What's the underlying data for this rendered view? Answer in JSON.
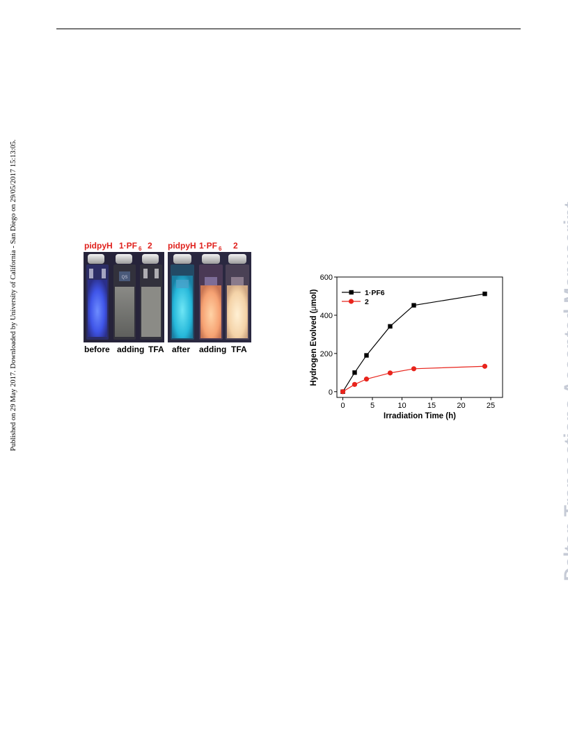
{
  "watermark": {
    "published": "Published on 29 May 2017. Downloaded by University of California - San Diego on 29/05/2017 15:13:05.",
    "journal": "Dalton Transactions Accepted Manuscript"
  },
  "photo": {
    "labels_top": [
      "pidpyH",
      "1·PF",
      "6",
      "2",
      "pidpyH",
      "1·PF",
      "6",
      "2"
    ],
    "caption_left": [
      "before",
      "adding",
      "TFA"
    ],
    "caption_right": [
      "after",
      "adding",
      "TFA"
    ],
    "vial_text": "QS",
    "colors": {
      "label_red": "#e0201c",
      "blue_glow": "#4a6bff",
      "cyan_glow": "#3fd4ee",
      "orange_glow": "#ffb27a",
      "peach_glow": "#ffdcae"
    }
  },
  "chart_data": {
    "type": "line",
    "xlabel": "Irradiation Time (h)",
    "ylabel_pre": "Hydrogen Evolved (",
    "ylabel_mu": "μ",
    "ylabel_post": "mol)",
    "xlim": [
      -1,
      27
    ],
    "ylim": [
      -30,
      600
    ],
    "xticks": [
      0,
      5,
      10,
      15,
      20,
      25
    ],
    "yticks": [
      0,
      200,
      400,
      600
    ],
    "legend_position": "top-left",
    "series": [
      {
        "name": "1·PF6",
        "marker": "square",
        "color": "#000000",
        "x": [
          0,
          2,
          4,
          8,
          12,
          24
        ],
        "y": [
          0,
          100,
          190,
          342,
          452,
          512
        ]
      },
      {
        "name": "2",
        "marker": "circle",
        "color": "#e8241c",
        "x": [
          0,
          2,
          4,
          8,
          12,
          24
        ],
        "y": [
          0,
          38,
          66,
          98,
          120,
          133
        ]
      }
    ]
  }
}
